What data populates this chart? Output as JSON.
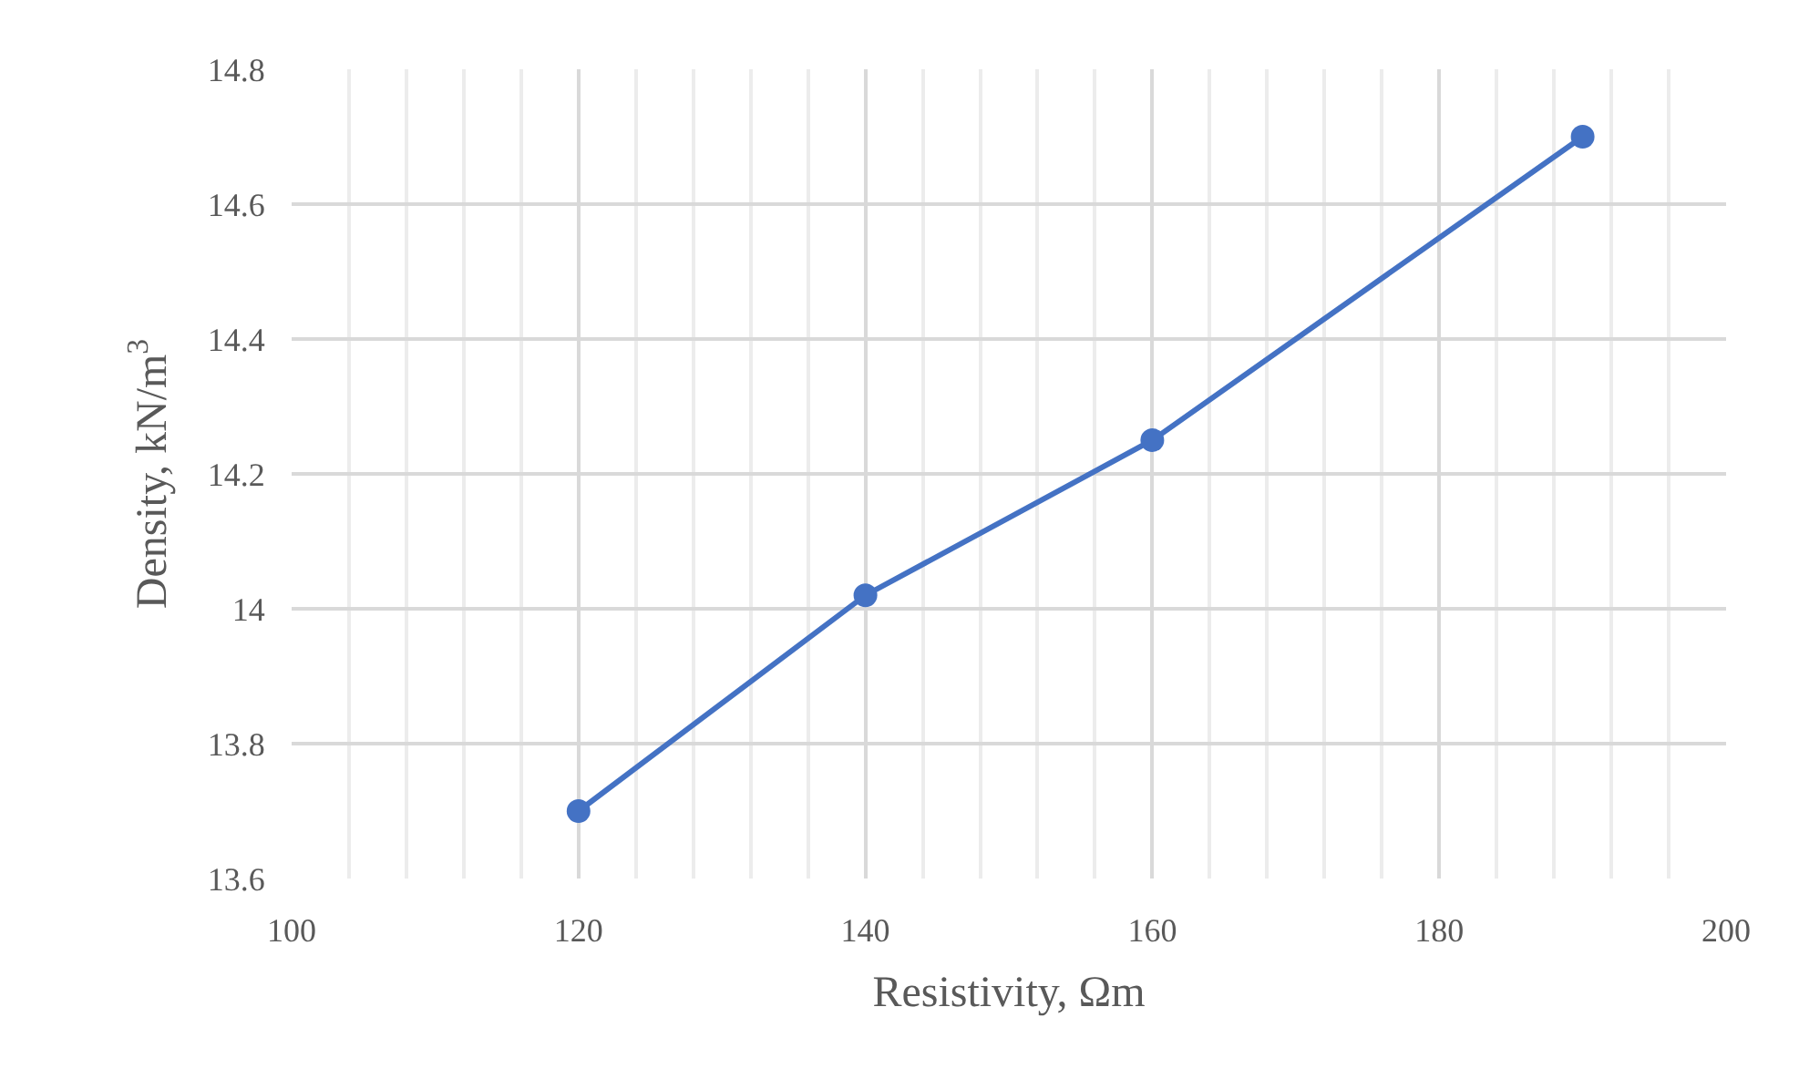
{
  "chart_data": {
    "type": "line",
    "xlabel": "Resistivity, Ωm",
    "ylabel": "Density, kN/m$^{3}$",
    "x": [
      120,
      140,
      160,
      190
    ],
    "series": [
      {
        "color": "#4472c4",
        "values": [
          13.7,
          14.02,
          14.25,
          14.7
        ]
      }
    ],
    "xlim": [
      100,
      200
    ],
    "xticks": [
      100,
      120,
      140,
      160,
      180,
      200
    ],
    "ylim": [
      13.6,
      14.8
    ],
    "yticks": [
      13.6,
      13.8,
      14,
      14.2,
      14.4,
      14.6,
      14.8
    ],
    "grid": true,
    "marker": "circle",
    "line_style": "solid"
  }
}
